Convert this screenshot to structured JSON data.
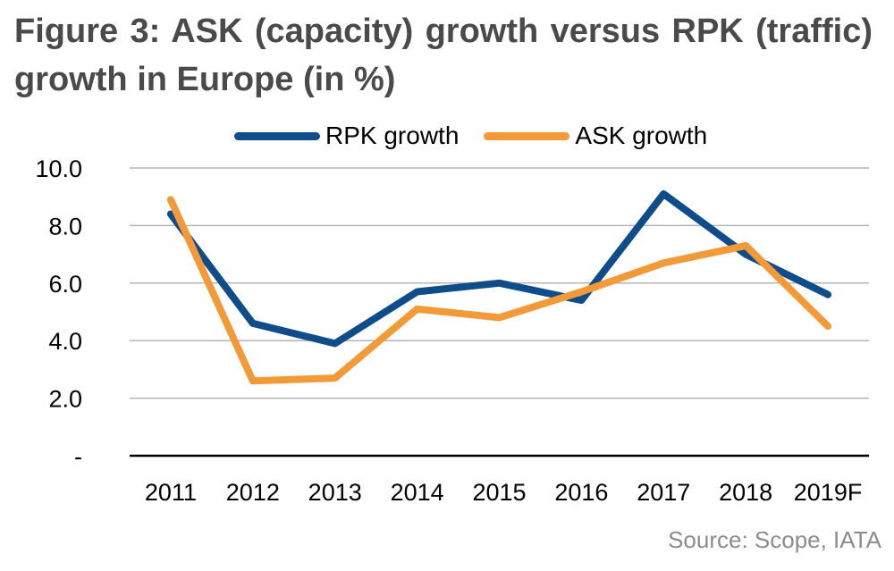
{
  "title": "Figure 3: ASK (capacity) growth versus RPK (traffic) growth in Europe (in %)",
  "source": "Source: Scope, IATA",
  "chart_data": {
    "type": "line",
    "categories": [
      "2011",
      "2012",
      "2013",
      "2014",
      "2015",
      "2016",
      "2017",
      "2018",
      "2019F"
    ],
    "series": [
      {
        "name": "RPK growth",
        "color": "#0f4c8a",
        "values": [
          8.4,
          4.6,
          3.9,
          5.7,
          6.0,
          5.4,
          9.1,
          7.0,
          5.6
        ]
      },
      {
        "name": "ASK growth",
        "color": "#f29a38",
        "values": [
          8.9,
          2.6,
          2.7,
          5.1,
          4.8,
          5.7,
          6.7,
          7.3,
          4.5
        ]
      }
    ],
    "yticks": [
      "-",
      "2.0",
      "4.0",
      "6.0",
      "8.0",
      "10.0"
    ],
    "ylim": [
      0,
      10
    ],
    "grid": true,
    "legend_position": "top",
    "xlabel": "",
    "ylabel": ""
  }
}
